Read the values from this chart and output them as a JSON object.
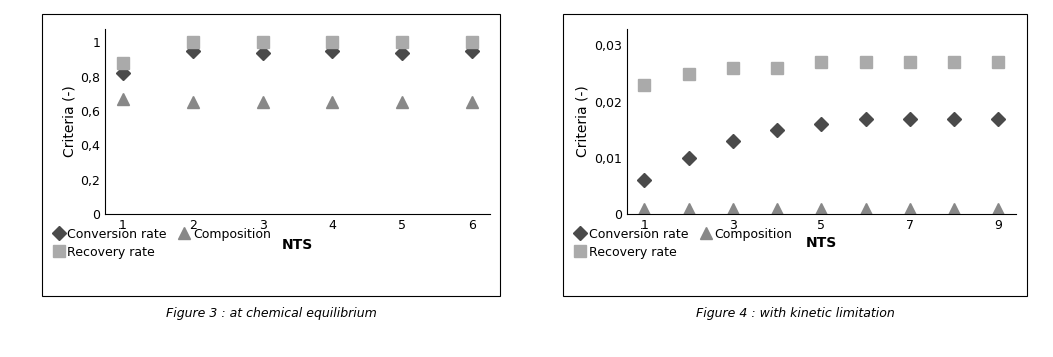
{
  "fig3": {
    "title": "Figure 3 : at chemical equilibrium",
    "xlabel": "NTS",
    "ylabel": "Criteria (-)",
    "nts": [
      1,
      2,
      3,
      4,
      5,
      6
    ],
    "conversion_rate": [
      0.82,
      0.95,
      0.94,
      0.95,
      0.94,
      0.95
    ],
    "recovery_rate": [
      0.88,
      1.0,
      1.0,
      1.0,
      1.0,
      1.0
    ],
    "composition": [
      0.67,
      0.65,
      0.65,
      0.65,
      0.65,
      0.65
    ],
    "ylim": [
      0,
      1.08
    ],
    "yticks": [
      0,
      0.2,
      0.4,
      0.6,
      0.8,
      1.0
    ],
    "ytick_labels": [
      "0",
      "0,2",
      "0,4",
      "0,6",
      "0,8",
      "1"
    ],
    "xticks": [
      1,
      2,
      3,
      4,
      5,
      6
    ],
    "nts_inline": true
  },
  "fig4": {
    "title": "Figure 4 : with kinetic limitation",
    "xlabel": "NTS",
    "ylabel": "Criteria (-)",
    "nts": [
      1,
      2,
      3,
      4,
      5,
      6,
      7,
      8,
      9
    ],
    "conversion_rate": [
      0.006,
      0.01,
      0.013,
      0.015,
      0.016,
      0.017,
      0.017,
      0.017,
      0.017
    ],
    "recovery_rate": [
      0.023,
      0.025,
      0.026,
      0.026,
      0.027,
      0.027,
      0.027,
      0.027,
      0.027
    ],
    "composition": [
      0.001,
      0.001,
      0.001,
      0.001,
      0.001,
      0.001,
      0.001,
      0.001,
      0.001
    ],
    "ylim": [
      0,
      0.033
    ],
    "yticks": [
      0,
      0.01,
      0.02,
      0.03
    ],
    "ytick_labels": [
      "0",
      "0,01",
      "0,02",
      "0,03"
    ],
    "xticks": [
      1,
      3,
      5,
      7,
      9
    ],
    "nts_inline": false
  },
  "color_diamond": "#4a4a4a",
  "color_square": "#aaaaaa",
  "color_triangle": "#888888",
  "marker_size_diamond": 7,
  "marker_size_square": 8,
  "marker_size_triangle": 8,
  "legend_fontsize": 9,
  "axis_label_fontsize": 10,
  "tick_fontsize": 9,
  "caption_fontsize": 9
}
